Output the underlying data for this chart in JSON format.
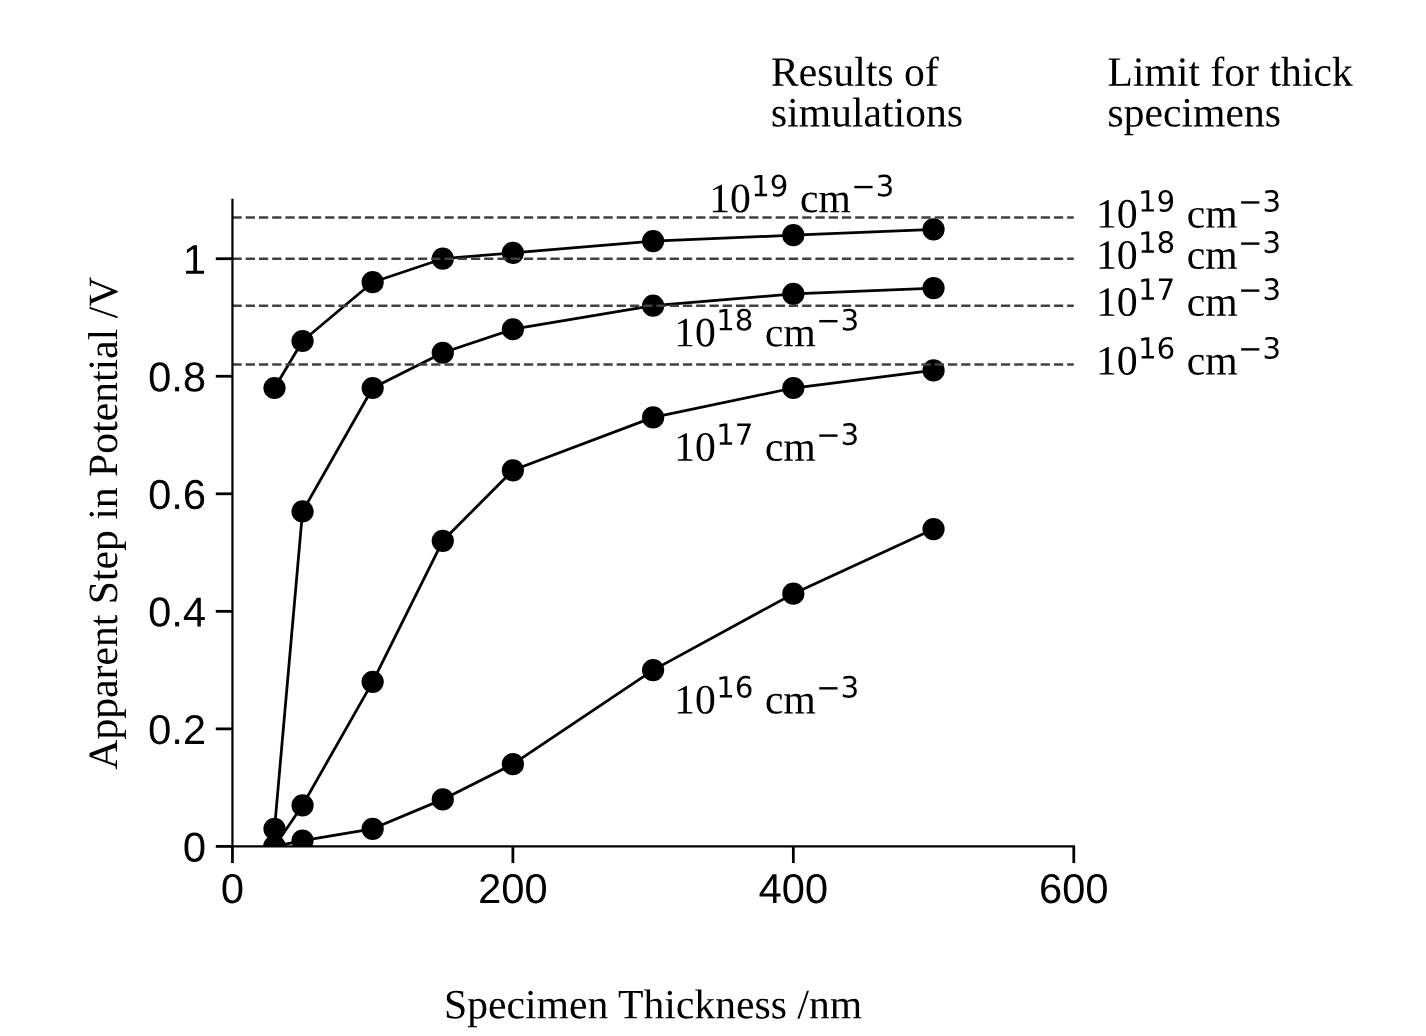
{
  "chart_data": {
    "type": "line",
    "xlabel": "Specimen Thickness /nm",
    "ylabel": "Apparent Step in Potential /V",
    "x": [
      30,
      50,
      100,
      150,
      200,
      300,
      400,
      500
    ],
    "series": [
      {
        "name": "10$^{19}$ cm$^{−3}$",
        "color": "#000000",
        "values": [
          0.78,
          0.86,
          0.96,
          1.0,
          1.01,
          1.03,
          1.04,
          1.05
        ]
      },
      {
        "name": "10$^{18}$ cm$^{−3}$",
        "color": "#000000",
        "values": [
          0.03,
          0.57,
          0.78,
          0.84,
          0.88,
          0.92,
          0.94,
          0.95
        ]
      },
      {
        "name": "10$^{17}$ cm$^{−3}$",
        "color": "#000000",
        "values": [
          0.0,
          0.07,
          0.28,
          0.52,
          0.64,
          0.73,
          0.78,
          0.81
        ]
      },
      {
        "name": "10$^{16}$ cm$^{−3}$",
        "color": "#000000",
        "values": [
          0.0,
          0.01,
          0.03,
          0.08,
          0.14,
          0.3,
          0.43,
          0.54
        ]
      }
    ],
    "xlim": [
      0,
      600
    ],
    "xticks": [
      0,
      200,
      400,
      600
    ],
    "ylim": [
      0,
      1.1
    ],
    "yticks": [
      0,
      0.2,
      0.4,
      0.6,
      0.8,
      1
    ],
    "ref_lines": [
      {
        "axis": "y",
        "value": 1.07,
        "label": "10$^{19}$ cm$^{−3}$",
        "color": "#404040",
        "line_style": "dashed"
      },
      {
        "axis": "y",
        "value": 1.0,
        "label": "10$^{18}$ cm$^{−3}$",
        "color": "#404040",
        "line_style": "dashed"
      },
      {
        "axis": "y",
        "value": 0.92,
        "label": "10$^{17}$ cm$^{−3}$",
        "color": "#404040",
        "line_style": "dashed"
      },
      {
        "axis": "y",
        "value": 0.82,
        "label": "10$^{16}$ cm$^{−3}$",
        "color": "#404040",
        "line_style": "dashed"
      }
    ],
    "annotations": [
      "Results of\nsimulations",
      "Limit for thick\nspecimens"
    ],
    "marker": "circle",
    "line_style": "solid",
    "grid": false,
    "legend": false
  }
}
